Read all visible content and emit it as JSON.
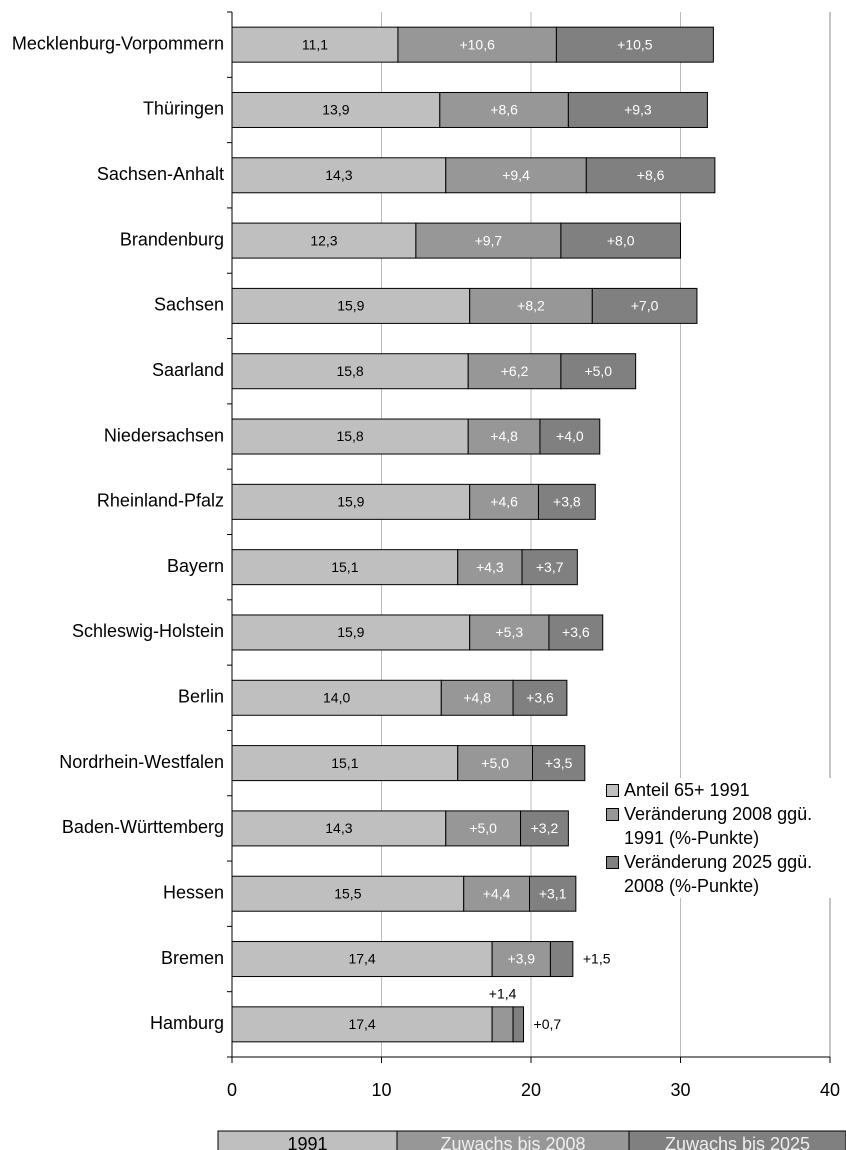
{
  "chart_data": {
    "type": "stacked-barh",
    "categories": [
      "Mecklenburg-Vorpommern",
      "Thüringen",
      "Sachsen-Anhalt",
      "Brandenburg",
      "Sachsen",
      "Saarland",
      "Niedersachsen",
      "Rheinland-Pfalz",
      "Bayern",
      "Schleswig-Holstein",
      "Berlin",
      "Nordrhein-Westfalen",
      "Baden-Württemberg",
      "Hessen",
      "Bremen",
      "Hamburg"
    ],
    "series": [
      {
        "name": "Anteil 65+ 1991",
        "color": "#bfbfbf",
        "values": [
          11.1,
          13.9,
          14.3,
          12.3,
          15.9,
          15.8,
          15.8,
          15.9,
          15.1,
          15.9,
          14.0,
          15.1,
          14.3,
          15.5,
          17.4,
          17.4
        ],
        "value_labels": [
          "11,1",
          "13,9",
          "14,3",
          "12,3",
          "15,9",
          "15,8",
          "15,8",
          "15,9",
          "15,1",
          "15,9",
          "14,0",
          "15,1",
          "14,3",
          "15,5",
          "17,4",
          "17,4"
        ]
      },
      {
        "name": "Veränderung 2008 ggü. 1991 (%-Punkte)",
        "color": "#979797",
        "values": [
          10.6,
          8.6,
          9.4,
          9.7,
          8.2,
          6.2,
          4.8,
          4.6,
          4.3,
          5.3,
          4.8,
          5.0,
          5.0,
          4.4,
          3.9,
          1.4
        ],
        "value_labels": [
          "+10,6",
          "+8,6",
          "+9,4",
          "+9,7",
          "+8,2",
          "+6,2",
          "+4,8",
          "+4,6",
          "+4,3",
          "+5,3",
          "+4,8",
          "+5,0",
          "+5,0",
          "+4,4",
          "+3,9",
          "+1,4"
        ]
      },
      {
        "name": "Veränderung 2025 ggü. 2008 (%-Punkte)",
        "color": "#808080",
        "values": [
          10.5,
          9.3,
          8.6,
          8.0,
          7.0,
          5.0,
          4.0,
          3.8,
          3.7,
          3.6,
          3.6,
          3.5,
          3.2,
          3.1,
          1.5,
          0.7
        ],
        "value_labels": [
          "+10,5",
          "+9,3",
          "+8,6",
          "+8,0",
          "+7,0",
          "+5,0",
          "+4,0",
          "+3,8",
          "+3,7",
          "+3,6",
          "+3,6",
          "+3,5",
          "+3,2",
          "+3,1",
          "+1,5",
          "+0,7"
        ]
      }
    ],
    "xlim": [
      0,
      40
    ],
    "xticks": [
      0,
      10,
      20,
      30,
      40
    ],
    "grid": true,
    "legend": "right",
    "bottom_labels": [
      "1991",
      "Zuwachs bis 2008",
      "Zuwachs bis 2025"
    ]
  }
}
